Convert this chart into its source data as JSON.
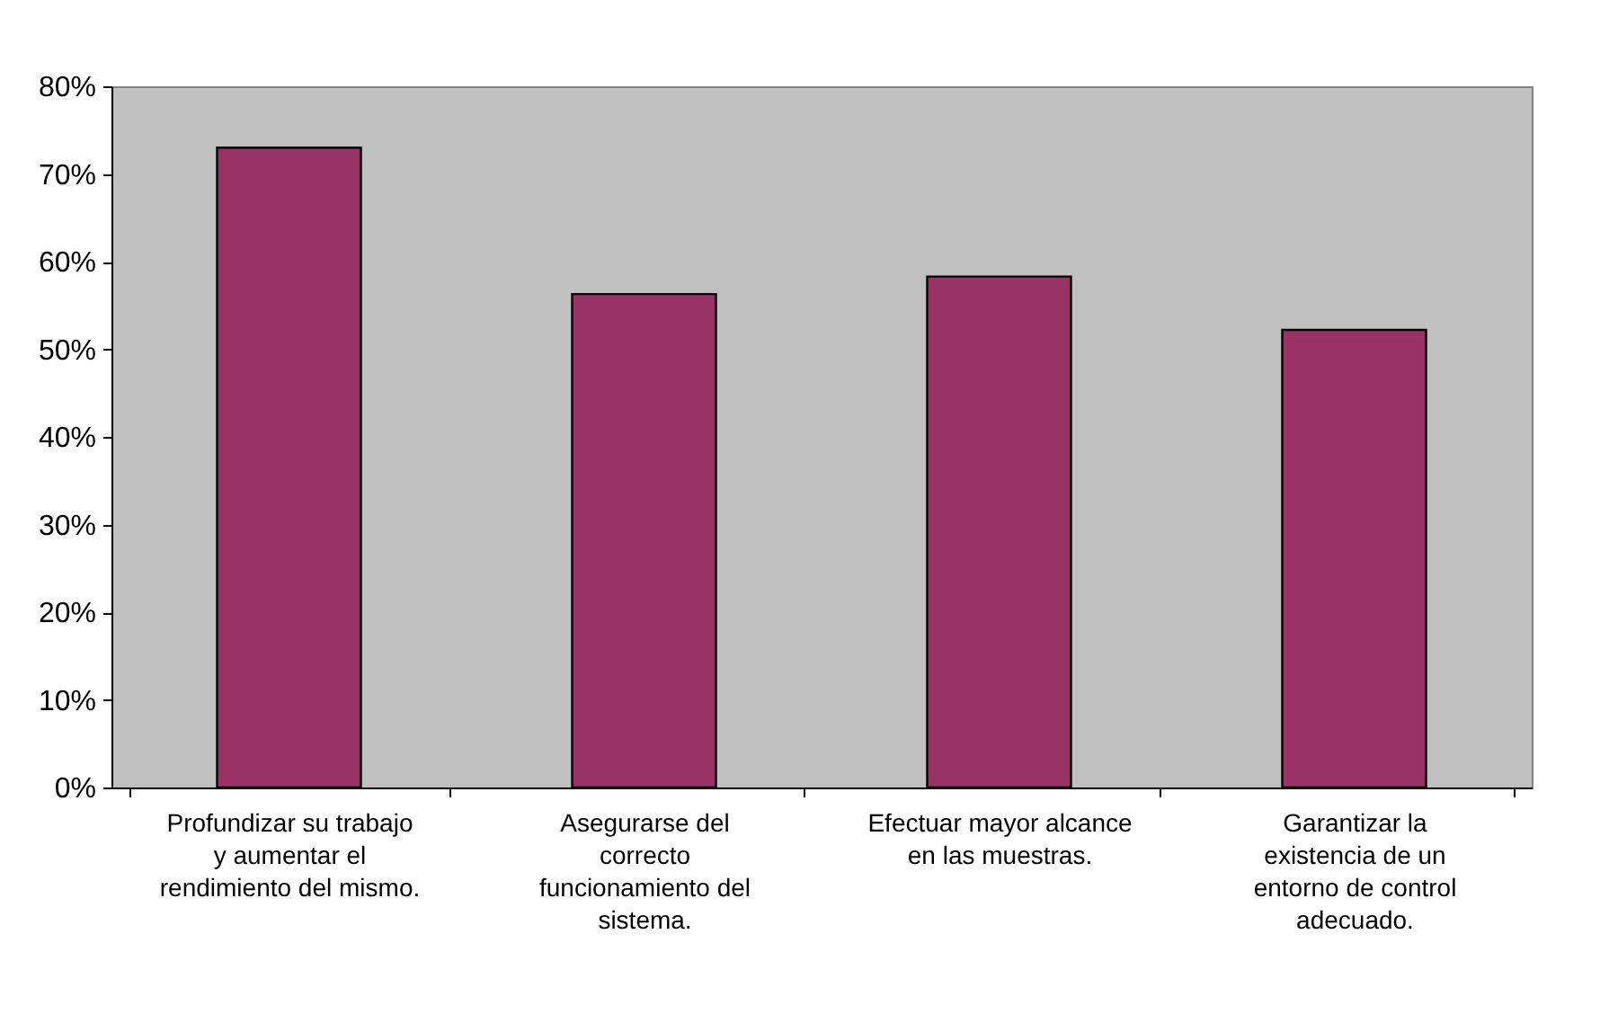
{
  "chart_data": {
    "type": "bar",
    "categories": [
      "Profundizar su trabajo y aumentar el rendimiento del mismo.",
      "Asegurarse del correcto funcionamiento del sistema.",
      "Efectuar mayor alcance en las muestras.",
      "Garantizar la existencia de un entorno de control adecuado."
    ],
    "values": [
      73.0,
      56.3,
      58.3,
      52.2
    ],
    "color": "#993366",
    "ylim": [
      0,
      80
    ],
    "yticks": [
      {
        "value": 0,
        "label": "0%"
      },
      {
        "value": 10,
        "label": "10%"
      },
      {
        "value": 20,
        "label": "20%"
      },
      {
        "value": 30,
        "label": "30%"
      },
      {
        "value": 40,
        "label": "40%"
      },
      {
        "value": 50,
        "label": "50%"
      },
      {
        "value": 60,
        "label": "60%"
      },
      {
        "value": 70,
        "label": "70%"
      },
      {
        "value": 80,
        "label": "80%"
      }
    ],
    "grid": false
  }
}
